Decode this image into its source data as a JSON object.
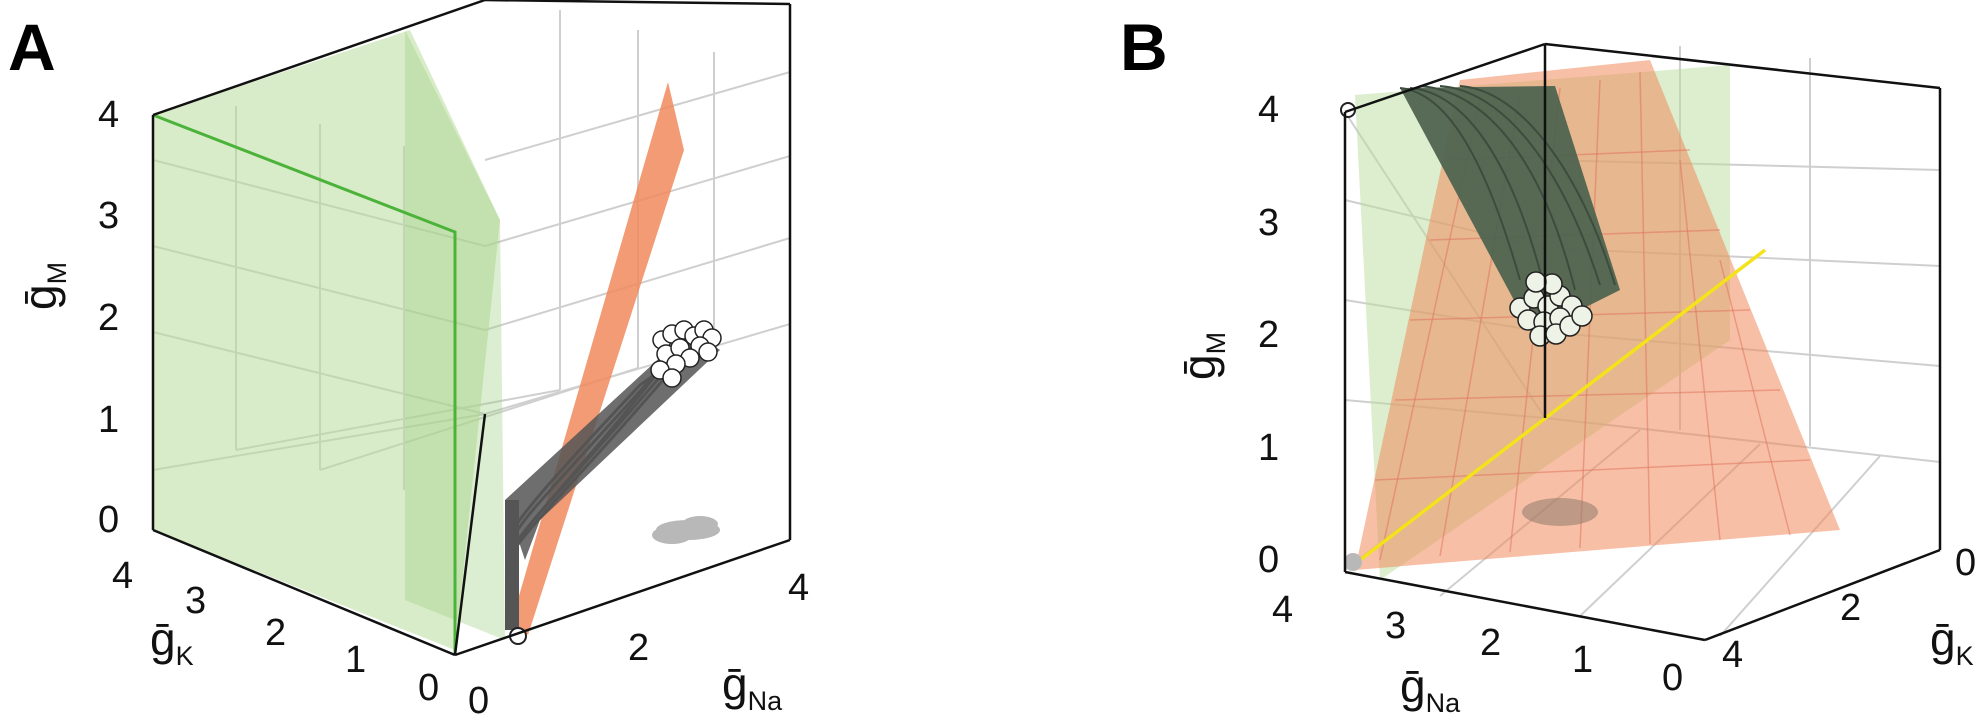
{
  "panels": [
    {
      "label": "A",
      "axes": {
        "gM": {
          "ticks": [
            "0",
            "1",
            "2",
            "3",
            "4"
          ],
          "label_main": "ḡ",
          "label_sub": "M"
        },
        "gK": {
          "ticks": [
            "0",
            "1",
            "2",
            "3",
            "4"
          ],
          "label_main": "ḡ",
          "label_sub": "K"
        },
        "gNa": {
          "ticks": [
            "0",
            "2",
            "4"
          ],
          "label_main": "ḡ",
          "label_sub": "Na"
        }
      }
    },
    {
      "label": "B",
      "axes": {
        "gM": {
          "ticks": [
            "0",
            "1",
            "2",
            "3",
            "4"
          ],
          "label_main": "ḡ",
          "label_sub": "M"
        },
        "gNa": {
          "ticks": [
            "4",
            "3",
            "2",
            "1",
            "0"
          ],
          "label_main": "ḡ",
          "label_sub": "Na"
        },
        "gK": {
          "ticks": [
            "0",
            "2",
            "4"
          ],
          "label_main": "ḡ",
          "label_sub": "K"
        }
      }
    }
  ],
  "colors": {
    "green_plane": "#b9dd9c",
    "green_line": "#4bb33a",
    "orange_plane": "#f08a5d",
    "trajectories": "#555555",
    "trajectories_B": "#4f6350",
    "projections": "#b8b8b8",
    "yellow_line": "#f4e21a",
    "grid": "#cfcfcf",
    "axes": "#111111"
  },
  "chart_data": [
    {
      "type": "scatter",
      "panel": "A",
      "xlabel": "ḡNa",
      "ylabel": "ḡK",
      "zlabel": "ḡM",
      "xlim": [
        0,
        4
      ],
      "ylim": [
        0,
        4
      ],
      "zlim": [
        0,
        4
      ],
      "grid": true,
      "series": [
        {
          "trajectory_start": {
            "gNa": 0.1,
            "gK": 0.2,
            "gM": 0.1
          },
          "trajectory_end_cluster": {
            "gNa": 2.8,
            "gK": 0.5,
            "gM": 2.0
          }
        }
      ]
    },
    {
      "type": "scatter",
      "panel": "B",
      "xlabel": "ḡNa",
      "ylabel": "ḡK",
      "zlabel": "ḡM",
      "xlim": [
        0,
        4
      ],
      "ylim": [
        0,
        4
      ],
      "zlim": [
        0,
        4
      ],
      "grid": true,
      "series": [
        {
          "trajectory_start": {
            "gNa": 4,
            "gK": 4,
            "gM": 4.1
          },
          "trajectory_end_cluster": {
            "gNa": 2.0,
            "gK": 2.0,
            "gM": 2.2
          }
        }
      ]
    }
  ]
}
